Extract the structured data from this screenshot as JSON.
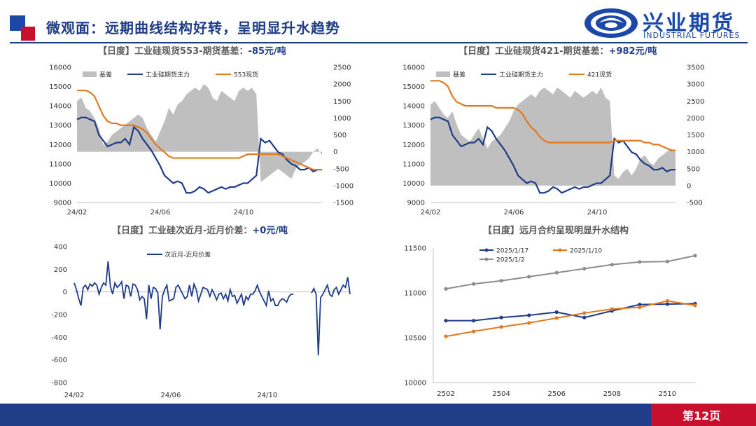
{
  "header": {
    "title": "微观面：远期曲线结构好转，呈明显升水趋势",
    "logo_cn": "兴业期货",
    "logo_en": "INDUSTRIAL FUTURES"
  },
  "footer": {
    "page": "第12页"
  },
  "colors": {
    "navy": "#1f3c88",
    "orange": "#e07a1f",
    "gray": "#bfbfbf",
    "red": "#c8102e",
    "lightgray": "#8c8c8c"
  },
  "chart_data": [
    {
      "id": "c1",
      "type": "line",
      "title_prefix": "【日度】工业硅现货553-期货基差：",
      "title_value": "-85元/吨",
      "x_ticks": [
        "24/02",
        "24/06",
        "24/10"
      ],
      "left_ticks": [
        "16000",
        "15000",
        "14000",
        "13000",
        "12000",
        "11000",
        "10000",
        "9000"
      ],
      "right_ticks": [
        "2500",
        "2000",
        "1500",
        "1000",
        "500",
        "0",
        "-500",
        "-1000",
        "-1500"
      ],
      "ylim_left": [
        9000,
        16000
      ],
      "ylim_right": [
        -1500,
        2500
      ],
      "legend": [
        "基差",
        "工业硅期货主力",
        "553现货"
      ],
      "series": [
        {
          "name": "基差",
          "axis": "right",
          "kind": "area",
          "values": [
            1500,
            1600,
            1300,
            1200,
            1000,
            700,
            200,
            300,
            500,
            600,
            700,
            800,
            900,
            1000,
            1100,
            1000,
            700,
            500,
            300,
            600,
            900,
            1300,
            1100,
            1400,
            1500,
            1700,
            1800,
            1900,
            1800,
            2000,
            1900,
            1600,
            1500,
            1800,
            1700,
            1600,
            1500,
            1800,
            1900,
            1800,
            1900,
            1700,
            -900,
            -800,
            -700,
            -600,
            -500,
            -600,
            -700,
            -800,
            -500,
            -400,
            -300,
            -200,
            0,
            100,
            -100
          ]
        },
        {
          "name": "工业硅期货主力",
          "axis": "left",
          "kind": "line",
          "values": [
            13300,
            13400,
            13400,
            13300,
            13200,
            12500,
            12200,
            11900,
            12000,
            12100,
            12100,
            12300,
            12000,
            12900,
            12700,
            12300,
            12000,
            11700,
            11300,
            10900,
            10400,
            10200,
            10000,
            10100,
            10000,
            9500,
            9500,
            9600,
            9800,
            9700,
            9500,
            9600,
            9700,
            9800,
            9700,
            9800,
            9800,
            9900,
            10000,
            10000,
            10200,
            10400,
            12300,
            12100,
            12200,
            11900,
            11600,
            11500,
            11200,
            11000,
            10900,
            10700,
            10700,
            10800,
            10600,
            10700,
            10700
          ]
        },
        {
          "name": "553现货",
          "axis": "left",
          "kind": "line",
          "values": [
            14800,
            14800,
            14800,
            14700,
            14500,
            14000,
            13500,
            13200,
            13100,
            13100,
            13000,
            13000,
            13000,
            13000,
            12900,
            12800,
            12600,
            12300,
            12000,
            11800,
            11600,
            11400,
            11300,
            11300,
            11300,
            11300,
            11300,
            11300,
            11300,
            11300,
            11300,
            11300,
            11300,
            11300,
            11300,
            11300,
            11300,
            11300,
            11400,
            11500,
            11500,
            11500,
            11500,
            11500,
            11500,
            11500,
            11500,
            11400,
            11300,
            11200,
            11100,
            11000,
            10900,
            10800,
            10700,
            10700,
            10700
          ]
        }
      ]
    },
    {
      "id": "c2",
      "type": "line",
      "title_prefix": "【日度】工业硅现货421-期货基差：",
      "title_value": "+982元/吨",
      "x_ticks": [
        "24/02",
        "24/06",
        "24/10"
      ],
      "left_ticks": [
        "16000",
        "15000",
        "14000",
        "13000",
        "12000",
        "11000",
        "10000",
        "9000"
      ],
      "right_ticks": [
        "3500",
        "3000",
        "2500",
        "2000",
        "1500",
        "1000",
        "500",
        "0",
        "-500"
      ],
      "ylim_left": [
        9000,
        16000
      ],
      "ylim_right": [
        -500,
        3500
      ],
      "legend": [
        "基差",
        "工业硅期货主力",
        "421现货"
      ],
      "series": [
        {
          "name": "基差",
          "axis": "right",
          "kind": "area",
          "values": [
            2400,
            2500,
            2300,
            2100,
            2000,
            2200,
            1800,
            1500,
            1400,
            1300,
            1500,
            1700,
            1400,
            1100,
            1300,
            1400,
            1500,
            1700,
            1900,
            2200,
            2400,
            2500,
            2600,
            2700,
            2600,
            2800,
            2900,
            2800,
            2700,
            2900,
            2800,
            2700,
            2600,
            2800,
            2700,
            2600,
            2700,
            2800,
            2700,
            2900,
            2600,
            2500,
            300,
            200,
            400,
            500,
            300,
            500,
            800,
            900,
            700,
            600,
            800,
            900,
            1000,
            1100,
            1000
          ]
        },
        {
          "name": "工业硅期货主力",
          "axis": "left",
          "kind": "line",
          "values": [
            13300,
            13400,
            13400,
            13300,
            13200,
            12500,
            12200,
            11900,
            12000,
            12100,
            12100,
            12300,
            12000,
            12900,
            12700,
            12300,
            12000,
            11700,
            11300,
            10900,
            10400,
            10200,
            10000,
            10100,
            10000,
            9500,
            9500,
            9600,
            9800,
            9700,
            9500,
            9600,
            9700,
            9800,
            9700,
            9800,
            9800,
            9900,
            10000,
            10000,
            10200,
            10400,
            12300,
            12100,
            12200,
            11900,
            11600,
            11500,
            11200,
            11000,
            10900,
            10700,
            10700,
            10800,
            10600,
            10700,
            10700
          ]
        },
        {
          "name": "421现货",
          "axis": "left",
          "kind": "line",
          "values": [
            15300,
            15300,
            15300,
            15200,
            15000,
            14500,
            14200,
            14100,
            14000,
            14000,
            14000,
            14000,
            14000,
            14000,
            14000,
            13900,
            13900,
            13900,
            13900,
            13900,
            13800,
            13600,
            13200,
            12900,
            12700,
            12400,
            12200,
            12100,
            12100,
            12100,
            12100,
            12100,
            12100,
            12100,
            12100,
            12100,
            12100,
            12100,
            12100,
            12100,
            12100,
            12100,
            12200,
            12200,
            12200,
            12200,
            12200,
            12200,
            12200,
            12100,
            12100,
            12000,
            12000,
            11900,
            11800,
            11700,
            11700
          ]
        }
      ]
    },
    {
      "id": "c3",
      "type": "line",
      "title_prefix": "【日度】工业硅次近月-近月价差：",
      "title_value": "+0元/吨",
      "x_ticks": [
        "24/02",
        "24/06",
        "24/10"
      ],
      "left_ticks": [
        "400",
        "200",
        "0",
        "-200",
        "-400",
        "-600",
        "-800"
      ],
      "ylim_left": [
        -800,
        400
      ],
      "legend": [
        "次近月-近月价差"
      ],
      "series": [
        {
          "name": "次近月-近月价差",
          "axis": "left",
          "kind": "line",
          "values": [
            80,
            20,
            -60,
            -120,
            40,
            60,
            20,
            70,
            50,
            80,
            60,
            -20,
            40,
            80,
            60,
            270,
            50,
            -20,
            80,
            40,
            60,
            90,
            -60,
            60,
            50,
            -40,
            70,
            60,
            20,
            -70,
            -40,
            -60,
            -240,
            60,
            -60,
            40,
            30,
            -10,
            -330,
            -40,
            20,
            60,
            -80,
            -70,
            -60,
            40,
            60,
            20,
            -20,
            -60,
            -40,
            60,
            -40,
            70,
            20,
            -80,
            -20,
            40,
            30,
            20,
            -40,
            20,
            -20,
            -70,
            -20,
            -10,
            -60,
            -20,
            -80,
            20,
            -40,
            -30,
            -100,
            -60,
            -20,
            -120,
            -40,
            -70,
            -20,
            -20,
            10,
            60,
            0,
            -40,
            -80,
            -120,
            10,
            -80,
            -60,
            -120,
            -120,
            -80,
            -60,
            -70,
            -90,
            -40,
            -20,
            -20,
            -10,
            -20,
            -70,
            -20,
            -10,
            -20,
            -30,
            -10,
            30,
            -20,
            -560,
            -50,
            -20,
            20,
            60,
            -20,
            -40,
            20,
            40,
            -20,
            20,
            60,
            40,
            130,
            -20
          ]
        },
        {
          "name": "gap_mask",
          "kind": "gap",
          "values": [
            98,
            99,
            100,
            101,
            102,
            103,
            104
          ]
        }
      ]
    },
    {
      "id": "c4",
      "type": "line",
      "title_prefix": "【日度】远月合约呈现明显升水结构",
      "title_value": "",
      "categories": [
        "2502",
        "2503",
        "2504",
        "2505",
        "2506",
        "2507",
        "2508",
        "2509",
        "2510",
        "2511"
      ],
      "x_ticks": [
        "2502",
        "2504",
        "2506",
        "2508",
        "2510"
      ],
      "left_ticks": [
        "11500",
        "11000",
        "10500",
        "10000"
      ],
      "ylim_left": [
        10000,
        11500
      ],
      "legend": [
        "2025/1/17",
        "2025/1/10",
        "2025/1/2"
      ],
      "series": [
        {
          "name": "2025/1/17",
          "values": [
            10690,
            10690,
            10725,
            10750,
            10785,
            10725,
            10800,
            10870,
            10875,
            10880
          ]
        },
        {
          "name": "2025/1/10",
          "values": [
            10515,
            10570,
            10620,
            10665,
            10720,
            10775,
            10820,
            10840,
            10910,
            10860
          ]
        },
        {
          "name": "2025/1/2",
          "values": [
            11045,
            11100,
            11135,
            11180,
            11225,
            11270,
            11315,
            11345,
            11350,
            11415
          ]
        }
      ]
    }
  ]
}
